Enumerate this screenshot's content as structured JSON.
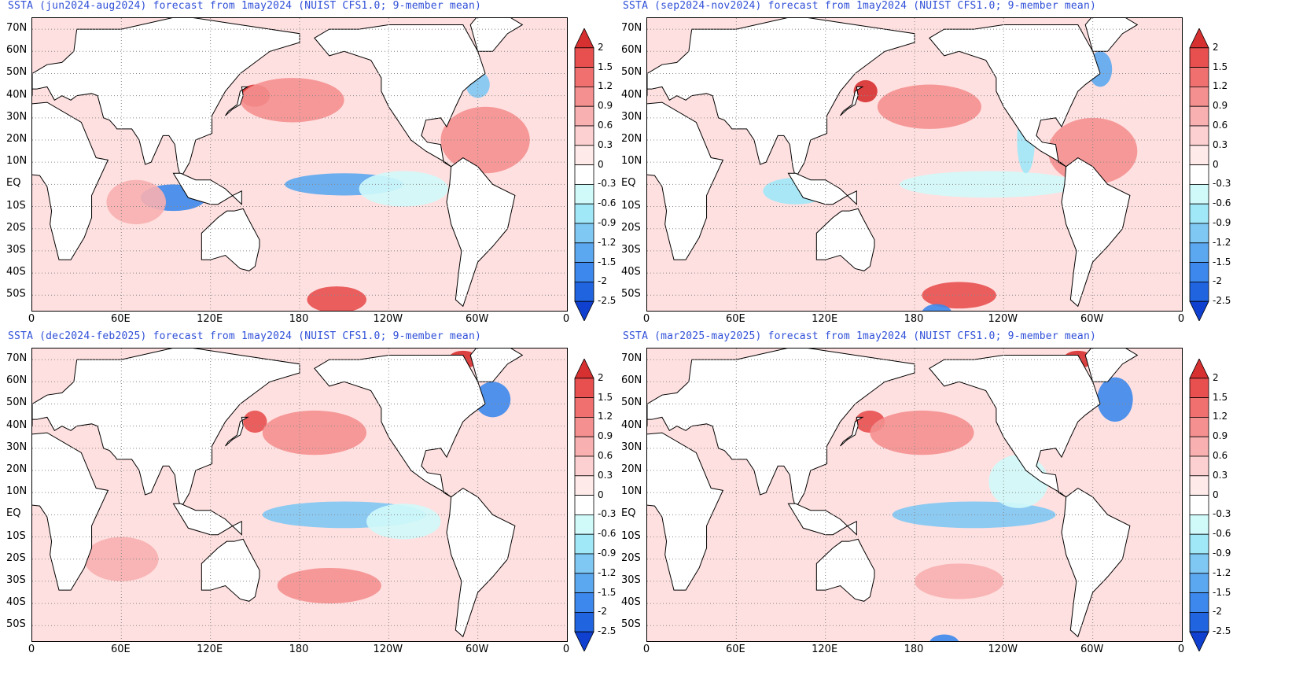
{
  "panels": [
    {
      "title": "SSTA (jun2024-aug2024) forecast from 1may2024 (NUIST CFS1.0; 9-member mean)",
      "blobs": [
        {
          "lon": 95,
          "lat": -6,
          "rx": 22,
          "ry": 6,
          "level": -2
        },
        {
          "lon": 210,
          "lat": 0,
          "rx": 40,
          "ry": 5,
          "level": -1.5
        },
        {
          "lon": 250,
          "lat": -2,
          "rx": 30,
          "ry": 8,
          "level": -0.6
        },
        {
          "lon": 150,
          "lat": 40,
          "rx": 10,
          "ry": 5,
          "level": 2
        },
        {
          "lon": 175,
          "lat": 38,
          "rx": 35,
          "ry": 10,
          "level": 0.9
        },
        {
          "lon": 305,
          "lat": 20,
          "rx": 30,
          "ry": 15,
          "level": 0.9
        },
        {
          "lon": 205,
          "lat": -52,
          "rx": 20,
          "ry": 6,
          "level": 1.5
        },
        {
          "lon": 70,
          "lat": -8,
          "rx": 20,
          "ry": 10,
          "level": 0.6
        },
        {
          "lon": 300,
          "lat": 45,
          "rx": 8,
          "ry": 6,
          "level": -1.2
        }
      ]
    },
    {
      "title": "SSTA (sep2024-nov2024) forecast from 1may2024 (NUIST CFS1.0; 9-member mean)",
      "blobs": [
        {
          "lon": 100,
          "lat": -3,
          "rx": 22,
          "ry": 6,
          "level": -0.9
        },
        {
          "lon": 230,
          "lat": 0,
          "rx": 60,
          "ry": 6,
          "level": -0.6
        },
        {
          "lon": 255,
          "lat": 20,
          "rx": 6,
          "ry": 15,
          "level": -0.9
        },
        {
          "lon": 147,
          "lat": 42,
          "rx": 8,
          "ry": 5,
          "level": 2
        },
        {
          "lon": 190,
          "lat": 35,
          "rx": 35,
          "ry": 10,
          "level": 0.9
        },
        {
          "lon": 300,
          "lat": 15,
          "rx": 30,
          "ry": 15,
          "level": 0.9
        },
        {
          "lon": 210,
          "lat": -50,
          "rx": 25,
          "ry": 6,
          "level": 1.5
        },
        {
          "lon": 305,
          "lat": 52,
          "rx": 8,
          "ry": 8,
          "level": -1.5
        },
        {
          "lon": 195,
          "lat": -58,
          "rx": 10,
          "ry": 4,
          "level": -2
        }
      ]
    },
    {
      "title": "SSTA (dec2024-feb2025) forecast from 1may2024 (NUIST CFS1.0; 9-member mean)",
      "blobs": [
        {
          "lon": 210,
          "lat": 0,
          "rx": 55,
          "ry": 6,
          "level": -1.2
        },
        {
          "lon": 250,
          "lat": -3,
          "rx": 25,
          "ry": 8,
          "level": -0.6
        },
        {
          "lon": 150,
          "lat": 42,
          "rx": 8,
          "ry": 5,
          "level": 1.5
        },
        {
          "lon": 190,
          "lat": 37,
          "rx": 35,
          "ry": 10,
          "level": 0.9
        },
        {
          "lon": 200,
          "lat": -32,
          "rx": 35,
          "ry": 8,
          "level": 0.9
        },
        {
          "lon": 310,
          "lat": 52,
          "rx": 12,
          "ry": 8,
          "level": -2
        },
        {
          "lon": 290,
          "lat": 70,
          "rx": 10,
          "ry": 4,
          "level": 2
        },
        {
          "lon": 60,
          "lat": -20,
          "rx": 25,
          "ry": 10,
          "level": 0.6
        }
      ]
    },
    {
      "title": "SSTA (mar2025-may2025) forecast from 1may2024 (NUIST CFS1.0; 9-member mean)",
      "blobs": [
        {
          "lon": 220,
          "lat": 0,
          "rx": 55,
          "ry": 6,
          "level": -1.2
        },
        {
          "lon": 250,
          "lat": 15,
          "rx": 20,
          "ry": 12,
          "level": -0.6
        },
        {
          "lon": 150,
          "lat": 42,
          "rx": 10,
          "ry": 5,
          "level": 1.5
        },
        {
          "lon": 185,
          "lat": 37,
          "rx": 35,
          "ry": 10,
          "level": 0.9
        },
        {
          "lon": 210,
          "lat": -30,
          "rx": 30,
          "ry": 8,
          "level": 0.6
        },
        {
          "lon": 315,
          "lat": 52,
          "rx": 12,
          "ry": 10,
          "level": -2
        },
        {
          "lon": 290,
          "lat": 70,
          "rx": 10,
          "ry": 4,
          "level": 2
        },
        {
          "lon": 200,
          "lat": -58,
          "rx": 10,
          "ry": 4,
          "level": -2
        }
      ]
    }
  ],
  "lat_ticks": [
    "70N",
    "60N",
    "50N",
    "40N",
    "30N",
    "20N",
    "10N",
    "EQ",
    "10S",
    "20S",
    "30S",
    "40S",
    "50S"
  ],
  "lon_ticks": [
    "0",
    "60E",
    "120E",
    "180",
    "120W",
    "60W",
    "0"
  ],
  "colorbar": {
    "labels": [
      "2",
      "1.5",
      "1.2",
      "0.9",
      "0.6",
      "0.3",
      "0",
      "-0.3",
      "-0.6",
      "-0.9",
      "-1.2",
      "-1.5",
      "-2",
      "-2.5"
    ],
    "colors": [
      "#d73030",
      "#e85050",
      "#f07070",
      "#f59090",
      "#f8b0b0",
      "#fcd0d0",
      "#ffeaea",
      "#ffffff",
      "#d0fafa",
      "#a0e8f8",
      "#80c8f4",
      "#5ca8f0",
      "#3c88ec",
      "#2064e0",
      "#1040d0"
    ]
  },
  "land_color": "#ffffff",
  "ocean_base_color": "#ffe0e0"
}
